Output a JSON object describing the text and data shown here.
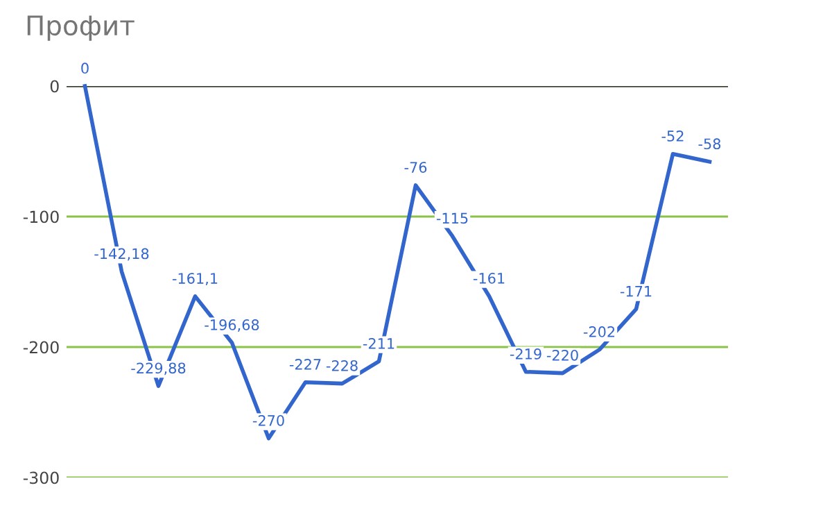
{
  "chart_data": {
    "type": "line",
    "title": "Профит",
    "categories": [
      null,
      null,
      null,
      null,
      null,
      null,
      null,
      null,
      null,
      null,
      null,
      null,
      null,
      null,
      null,
      null,
      null,
      null
    ],
    "series": [
      {
        "color": "#3366cc",
        "values": [
          0,
          -142.18,
          -229.88,
          -161.1,
          -196.68,
          -270,
          -227,
          -228,
          -211,
          -76,
          -115,
          -161,
          -219,
          -220,
          -202,
          -171,
          -52,
          -58
        ],
        "value_labels": [
          "0",
          "-142,18",
          "-229,88",
          "-161,1",
          "-196,68",
          "-270",
          "-227",
          "-228",
          "-211",
          "-76",
          "-115",
          "-161",
          "-219",
          "-220",
          "-202",
          "-171",
          "-52",
          "-58"
        ]
      }
    ],
    "ylim": [
      -300,
      0
    ],
    "yticks": [
      0,
      -100,
      -200,
      -300
    ],
    "grid": "y",
    "tick_labels": "y",
    "ref_lines": [
      {
        "axis": "y",
        "value": 0,
        "color": "#333333"
      }
    ],
    "marker": "none",
    "line_style": "solid"
  }
}
